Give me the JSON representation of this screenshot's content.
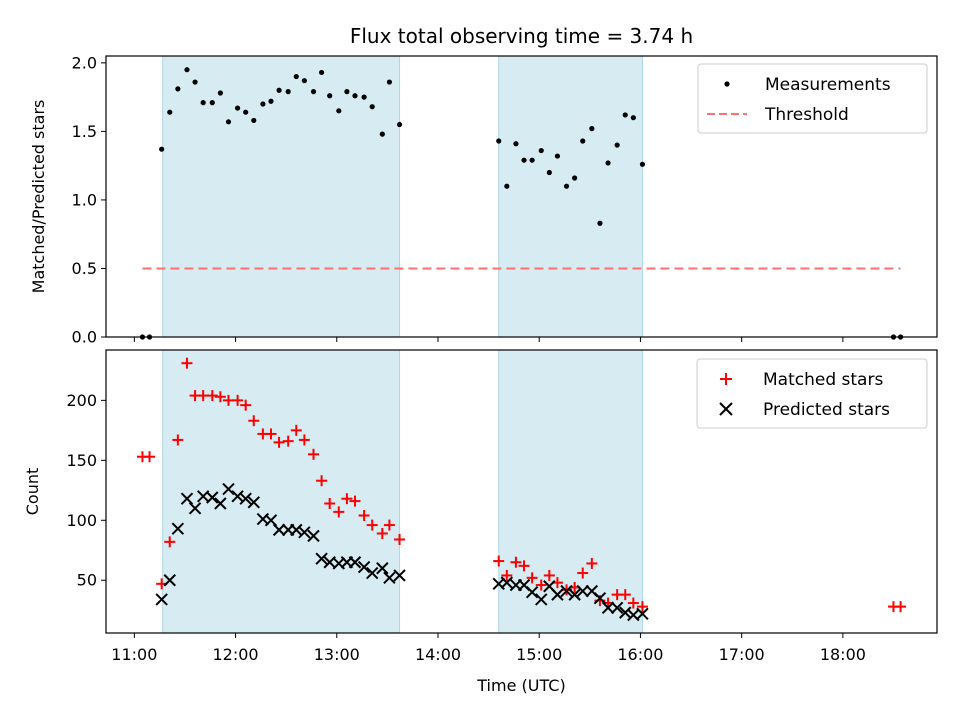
{
  "chart_data": [
    {
      "type": "scatter",
      "title": "Flux total observing time = 3.74 h",
      "xlabel": "",
      "ylabel": "Matched/Predicted stars",
      "xlim_hours": [
        10.72,
        18.93
      ],
      "ylim": [
        0,
        2.05
      ],
      "yticks": [
        0.0,
        0.5,
        1.0,
        1.5,
        2.0
      ],
      "ytick_labels": [
        "0.0",
        "0.5",
        "1.0",
        "1.5",
        "2.0"
      ],
      "legend_position": "upper right",
      "shaded_spans_hours": [
        [
          11.28,
          13.62
        ],
        [
          14.6,
          16.02
        ]
      ],
      "shade_color": "#add8e6",
      "series": [
        {
          "name": "Measurements",
          "marker": "dot",
          "color": "#000000",
          "x_hours": [
            11.08,
            11.15,
            11.27,
            11.35,
            11.43,
            11.52,
            11.6,
            11.68,
            11.77,
            11.85,
            11.93,
            12.02,
            12.1,
            12.18,
            12.27,
            12.35,
            12.43,
            12.52,
            12.6,
            12.68,
            12.77,
            12.85,
            12.93,
            13.02,
            13.1,
            13.18,
            13.27,
            13.35,
            13.45,
            13.52,
            13.62,
            14.6,
            14.68,
            14.77,
            14.85,
            14.93,
            15.02,
            15.1,
            15.18,
            15.27,
            15.35,
            15.43,
            15.52,
            15.6,
            15.68,
            15.77,
            15.85,
            15.93,
            16.02,
            18.5,
            18.57
          ],
          "y": [
            0.0,
            0.0,
            1.37,
            1.64,
            1.81,
            1.95,
            1.86,
            1.71,
            1.71,
            1.78,
            1.57,
            1.67,
            1.64,
            1.58,
            1.7,
            1.72,
            1.8,
            1.79,
            1.9,
            1.87,
            1.79,
            1.93,
            1.76,
            1.65,
            1.79,
            1.76,
            1.75,
            1.68,
            1.48,
            1.86,
            1.55,
            1.43,
            1.1,
            1.41,
            1.29,
            1.29,
            1.36,
            1.2,
            1.32,
            1.1,
            1.16,
            1.43,
            1.52,
            0.83,
            1.27,
            1.4,
            1.62,
            1.6,
            1.26,
            0.0,
            0.0
          ]
        },
        {
          "name": "Threshold",
          "marker": "dashed-line",
          "color": "#ff7070",
          "x_hours": [
            11.08,
            18.57
          ],
          "y": [
            0.5,
            0.5
          ]
        }
      ]
    },
    {
      "type": "scatter",
      "title": "",
      "xlabel": "Time (UTC)",
      "ylabel": "Count",
      "xlim_hours": [
        10.72,
        18.93
      ],
      "ylim": [
        6,
        242
      ],
      "yticks": [
        50,
        100,
        150,
        200
      ],
      "ytick_labels": [
        "50",
        "100",
        "150",
        "200"
      ],
      "xticks_hours": [
        11,
        12,
        13,
        14,
        15,
        16,
        17,
        18
      ],
      "xtick_labels": [
        "11:00",
        "12:00",
        "13:00",
        "14:00",
        "15:00",
        "16:00",
        "17:00",
        "18:00"
      ],
      "legend_position": "upper right",
      "shaded_spans_hours": [
        [
          11.28,
          13.62
        ],
        [
          14.6,
          16.02
        ]
      ],
      "shade_color": "#add8e6",
      "series": [
        {
          "name": "Matched stars",
          "marker": "plus",
          "color": "#ff0000",
          "x_hours": [
            11.08,
            11.15,
            11.27,
            11.35,
            11.43,
            11.52,
            11.6,
            11.68,
            11.77,
            11.85,
            11.93,
            12.02,
            12.1,
            12.18,
            12.27,
            12.35,
            12.43,
            12.52,
            12.6,
            12.68,
            12.77,
            12.85,
            12.93,
            13.02,
            13.1,
            13.18,
            13.27,
            13.35,
            13.45,
            13.52,
            13.62,
            14.6,
            14.68,
            14.77,
            14.85,
            14.93,
            15.02,
            15.1,
            15.18,
            15.27,
            15.35,
            15.43,
            15.52,
            15.6,
            15.68,
            15.77,
            15.85,
            15.93,
            16.02,
            18.5,
            18.57
          ],
          "y": [
            153,
            153,
            47,
            82,
            167,
            231,
            204,
            204,
            204,
            203,
            200,
            200,
            196,
            183,
            172,
            172,
            165,
            166,
            175,
            167,
            155,
            133,
            114,
            107,
            118,
            116,
            104,
            96,
            89,
            96,
            84,
            66,
            54,
            65,
            62,
            52,
            46,
            54,
            48,
            42,
            44,
            56,
            64,
            33,
            31,
            38,
            38,
            31,
            28,
            28,
            28
          ]
        },
        {
          "name": "Predicted stars",
          "marker": "x",
          "color": "#000000",
          "x_hours": [
            11.27,
            11.35,
            11.43,
            11.52,
            11.6,
            11.68,
            11.77,
            11.85,
            11.93,
            12.02,
            12.1,
            12.18,
            12.27,
            12.35,
            12.43,
            12.52,
            12.6,
            12.68,
            12.77,
            12.85,
            12.93,
            13.02,
            13.1,
            13.18,
            13.27,
            13.35,
            13.45,
            13.52,
            13.62,
            14.6,
            14.68,
            14.77,
            14.85,
            14.93,
            15.02,
            15.1,
            15.18,
            15.27,
            15.35,
            15.43,
            15.52,
            15.6,
            15.68,
            15.77,
            15.85,
            15.93,
            16.02
          ],
          "y": [
            34,
            50,
            93,
            118,
            110,
            120,
            119,
            114,
            126,
            120,
            118,
            115,
            101,
            100,
            92,
            92,
            92,
            90,
            87,
            68,
            65,
            64,
            65,
            65,
            61,
            56,
            60,
            52,
            54,
            47,
            48,
            46,
            46,
            40,
            34,
            45,
            38,
            41,
            38,
            41,
            41,
            35,
            27,
            27,
            23,
            21,
            22
          ]
        }
      ]
    }
  ]
}
